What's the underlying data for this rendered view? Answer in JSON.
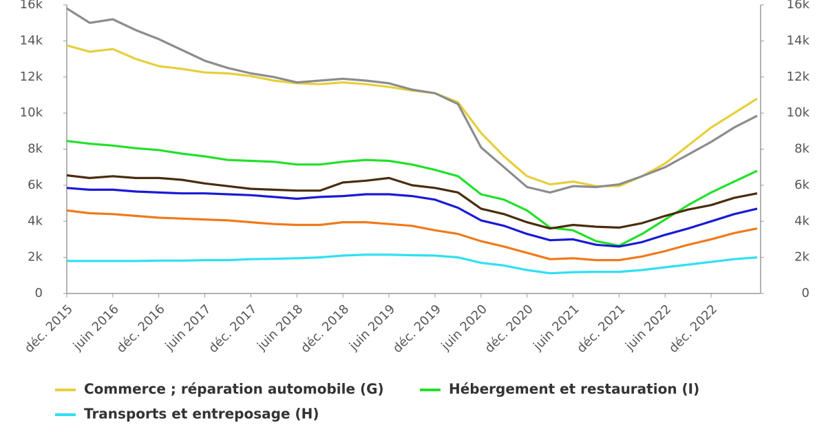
{
  "chart_data": {
    "type": "line",
    "categories": [
      "déc. 2015",
      null,
      "juin 2016",
      null,
      "déc. 2016",
      null,
      "juin 2017",
      null,
      "déc. 2017",
      null,
      "juin 2018",
      null,
      "déc. 2018",
      null,
      "juin 2019",
      null,
      "déc. 2019",
      null,
      "juin 2020",
      null,
      "déc. 2020",
      null,
      "juin 2021",
      null,
      "déc. 2021",
      null,
      "juin 2022",
      null,
      "déc. 2022",
      null,
      null
    ],
    "ylim": [
      0,
      16000
    ],
    "yticks": [
      0,
      {
        "value": 2000,
        "label": "2k"
      },
      {
        "value": 4000,
        "label": "4k"
      },
      {
        "value": 6000,
        "label": "6k"
      },
      {
        "value": 8000,
        "label": "8k"
      },
      {
        "value": 10000,
        "label": "10k"
      },
      {
        "value": 12000,
        "label": "12k"
      },
      {
        "value": 14000,
        "label": "14k"
      },
      {
        "value": 16000,
        "label": "16k"
      }
    ],
    "y2lim": [
      0,
      16000
    ],
    "y2ticks": [
      0,
      {
        "value": 2000,
        "label": "2k"
      },
      {
        "value": 4000,
        "label": "4k"
      },
      {
        "value": 6000,
        "label": "6k"
      },
      {
        "value": 8000,
        "label": "8k"
      },
      {
        "value": 10000,
        "label": "10k"
      },
      {
        "value": 12000,
        "label": "12k"
      },
      {
        "value": 14000,
        "label": "14k"
      },
      {
        "value": 16000,
        "label": "16k"
      }
    ],
    "series": [
      {
        "name": "Commerce ; réparation automobile (G)",
        "color": "#e6cf3c",
        "values": [
          13750,
          13400,
          13550,
          13000,
          12600,
          12450,
          12250,
          12200,
          12050,
          11800,
          11650,
          11600,
          11700,
          11600,
          11450,
          11250,
          11100,
          10600,
          8900,
          7600,
          6500,
          6050,
          6200,
          5950,
          5950,
          6500,
          7200,
          8200,
          9200,
          10000,
          10800
        ]
      },
      {
        "name": "Hébergement et restauration (I)",
        "color": "#22e02a",
        "values": [
          8450,
          8300,
          8200,
          8050,
          7950,
          7750,
          7600,
          7400,
          7350,
          7300,
          7150,
          7150,
          7300,
          7400,
          7350,
          7150,
          6850,
          6500,
          5500,
          5200,
          4600,
          3650,
          3500,
          2900,
          2650,
          3300,
          4100,
          4900,
          5600,
          6200,
          6800
        ]
      },
      {
        "name": "Transports et entreposage (H)",
        "color": "#2ee0f2",
        "values": [
          1800,
          1800,
          1800,
          1800,
          1820,
          1820,
          1850,
          1850,
          1900,
          1920,
          1950,
          2000,
          2100,
          2150,
          2150,
          2120,
          2100,
          2000,
          1700,
          1550,
          1300,
          1120,
          1180,
          1200,
          1200,
          1300,
          1450,
          1600,
          1750,
          1900,
          2000
        ]
      },
      {
        "color": "#8c8c8c",
        "values": [
          15800,
          15000,
          15200,
          14600,
          14100,
          13500,
          12900,
          12500,
          12200,
          12000,
          11700,
          11800,
          11900,
          11800,
          11650,
          11300,
          11100,
          10500,
          8100,
          7000,
          5900,
          5600,
          5950,
          5900,
          6050,
          6500,
          7000,
          7700,
          8400,
          9200,
          9850
        ]
      },
      {
        "color": "#4a2c0c",
        "values": [
          6550,
          6400,
          6500,
          6400,
          6400,
          6300,
          6100,
          5950,
          5800,
          5750,
          5700,
          5700,
          6150,
          6250,
          6400,
          6000,
          5850,
          5600,
          4700,
          4400,
          3950,
          3600,
          3800,
          3700,
          3650,
          3900,
          4300,
          4650,
          4900,
          5300,
          5550
        ]
      },
      {
        "color": "#1a1ad6",
        "values": [
          5850,
          5750,
          5750,
          5650,
          5600,
          5550,
          5550,
          5500,
          5450,
          5350,
          5250,
          5350,
          5400,
          5500,
          5500,
          5400,
          5200,
          4750,
          4050,
          3750,
          3300,
          2950,
          3000,
          2700,
          2600,
          2850,
          3250,
          3600,
          4000,
          4400,
          4700
        ]
      },
      {
        "color": "#f07a1a",
        "values": [
          4600,
          4450,
          4400,
          4300,
          4200,
          4150,
          4100,
          4050,
          3950,
          3850,
          3800,
          3800,
          3950,
          3950,
          3850,
          3750,
          3500,
          3300,
          2900,
          2600,
          2250,
          1900,
          1950,
          1850,
          1850,
          2050,
          2350,
          2700,
          3000,
          3350,
          3600
        ]
      }
    ]
  }
}
